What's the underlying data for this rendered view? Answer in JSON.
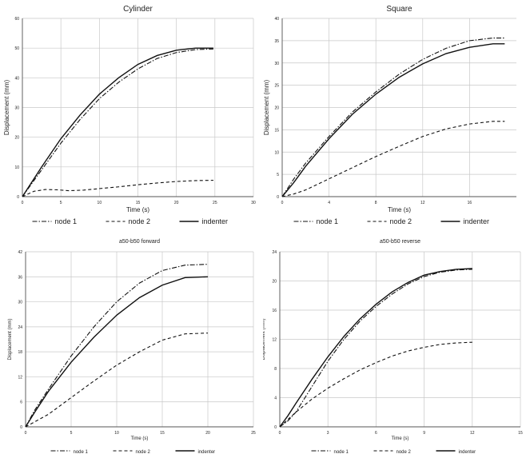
{
  "chart_data": [
    {
      "type": "line",
      "title": "Cylinder",
      "xlabel": "Time (s)",
      "ylabel": "Displacement (mm)",
      "xlim": [
        0,
        30
      ],
      "ylim": [
        0,
        60
      ],
      "x_ticks": [
        "0",
        "5",
        "10",
        "15",
        "20",
        "25",
        "30"
      ],
      "y_ticks": [
        "0",
        "10",
        "20",
        "30",
        "40",
        "50",
        "60"
      ],
      "grid": true,
      "legend_position": "bottom",
      "series": [
        {
          "name": "node 1",
          "style": "dashdot",
          "x": [
            0,
            2.5,
            5,
            7.5,
            10,
            12.5,
            15,
            17.5,
            20,
            22.5,
            24.8
          ],
          "y": [
            0,
            9,
            18,
            26,
            33,
            38.5,
            43,
            46.5,
            48.5,
            49.5,
            49.7
          ]
        },
        {
          "name": "node 2",
          "style": "dashed",
          "x": [
            0,
            1.5,
            3,
            4.5,
            6,
            8,
            10,
            12.5,
            15,
            17.5,
            20,
            22.5,
            24.8
          ],
          "y": [
            0,
            1.8,
            2.4,
            2.3,
            2.0,
            2.2,
            2.7,
            3.3,
            4.0,
            4.6,
            5.1,
            5.4,
            5.5
          ]
        },
        {
          "name": "indenter",
          "style": "solid",
          "x": [
            0,
            2.5,
            5,
            7.5,
            10,
            12.5,
            15,
            17.5,
            20,
            22.5,
            24.8
          ],
          "y": [
            0,
            10,
            19.5,
            27.5,
            34.5,
            40,
            44.5,
            47.5,
            49.3,
            50,
            50
          ]
        }
      ]
    },
    {
      "type": "line",
      "title": "Square",
      "xlabel": "Time (s)",
      "ylabel": "Displacement (mm)",
      "xlim": [
        0,
        20
      ],
      "ylim": [
        0,
        40
      ],
      "x_ticks": [
        "0",
        "4",
        "8",
        "12",
        "16"
      ],
      "y_ticks": [
        "0",
        "5",
        "10",
        "15",
        "20",
        "25",
        "30",
        "35",
        "40"
      ],
      "grid": true,
      "legend_position": "bottom",
      "series": [
        {
          "name": "node 1",
          "style": "dashdot",
          "x": [
            0,
            1,
            2,
            4,
            6,
            8,
            10,
            12,
            14,
            16,
            18,
            19
          ],
          "y": [
            0,
            4,
            7.5,
            13.5,
            19,
            23.5,
            27.5,
            30.8,
            33.3,
            35,
            35.6,
            35.6
          ]
        },
        {
          "name": "node 2",
          "style": "dashed",
          "x": [
            0,
            1,
            2,
            4,
            6,
            8,
            10,
            12,
            14,
            16,
            18,
            19
          ],
          "y": [
            0,
            0.6,
            1.5,
            4,
            6.5,
            9,
            11.3,
            13.5,
            15.2,
            16.3,
            16.9,
            16.9
          ]
        },
        {
          "name": "indenter",
          "style": "solid",
          "x": [
            0,
            1,
            2,
            4,
            6,
            8,
            10,
            12,
            14,
            16,
            18,
            19
          ],
          "y": [
            0,
            3.2,
            6.8,
            13,
            18.5,
            23,
            26.8,
            29.8,
            32.1,
            33.5,
            34.3,
            34.3
          ]
        }
      ]
    },
    {
      "type": "line",
      "title": "a50-b50 forward",
      "xlabel": "Time (s)",
      "ylabel": "Displacement (mm)",
      "xlim": [
        0,
        25
      ],
      "ylim": [
        0,
        42
      ],
      "x_ticks": [
        "0",
        "5",
        "10",
        "15",
        "20",
        "25"
      ],
      "y_ticks": [
        "0",
        "6",
        "12",
        "18",
        "24",
        "30",
        "36",
        "42"
      ],
      "grid": true,
      "legend_position": "bottom",
      "series": [
        {
          "name": "node 1",
          "style": "dashdot",
          "x": [
            0,
            1,
            2.5,
            5,
            7.5,
            10,
            12.5,
            15,
            17.5,
            20
          ],
          "y": [
            0,
            4,
            9,
            17,
            24,
            30,
            34.5,
            37.5,
            38.8,
            39
          ]
        },
        {
          "name": "node 2",
          "style": "dashed",
          "x": [
            0,
            1,
            2.5,
            5,
            7.5,
            10,
            12.5,
            15,
            17.5,
            20
          ],
          "y": [
            0,
            1.2,
            3,
            7,
            11,
            14.8,
            18,
            20.8,
            22.3,
            22.5
          ]
        },
        {
          "name": "indenter",
          "style": "solid",
          "x": [
            0,
            1,
            2.5,
            5,
            7.5,
            10,
            12.5,
            15,
            17.5,
            20
          ],
          "y": [
            0,
            3.5,
            8.5,
            15.5,
            21.5,
            26.8,
            31,
            34,
            35.8,
            36
          ]
        }
      ]
    },
    {
      "type": "line",
      "title": "a50-b50 reverse",
      "xlabel": "Time (s)",
      "ylabel": "Displacement (mm)",
      "xlim": [
        0,
        15
      ],
      "ylim": [
        0,
        24
      ],
      "x_ticks": [
        "0",
        "3",
        "6",
        "9",
        "12",
        "15"
      ],
      "y_ticks": [
        "0",
        "4",
        "8",
        "12",
        "16",
        "20",
        "24"
      ],
      "grid": true,
      "legend_position": "bottom",
      "series": [
        {
          "name": "node 1",
          "style": "dashdot",
          "x": [
            0,
            0.5,
            1,
            2,
            3,
            4,
            5,
            6,
            7,
            8,
            9,
            10,
            11,
            12
          ],
          "y": [
            0,
            0.8,
            2,
            5.5,
            9,
            12,
            14.5,
            16.5,
            18.2,
            19.6,
            20.6,
            21.2,
            21.5,
            21.6
          ]
        },
        {
          "name": "node 2",
          "style": "dashed",
          "x": [
            0,
            0.5,
            1,
            2,
            3,
            4,
            5,
            6,
            7,
            8,
            9,
            10,
            11,
            12
          ],
          "y": [
            0,
            1,
            2,
            3.8,
            5.3,
            6.6,
            7.8,
            8.8,
            9.7,
            10.4,
            10.9,
            11.3,
            11.5,
            11.6
          ]
        },
        {
          "name": "indenter",
          "style": "solid",
          "x": [
            0,
            0.5,
            1,
            2,
            3,
            4,
            5,
            6,
            7,
            8,
            9,
            10,
            11,
            12
          ],
          "y": [
            0,
            1.5,
            3.2,
            6.5,
            9.6,
            12.4,
            14.8,
            16.8,
            18.5,
            19.8,
            20.8,
            21.3,
            21.6,
            21.7
          ]
        }
      ]
    }
  ]
}
